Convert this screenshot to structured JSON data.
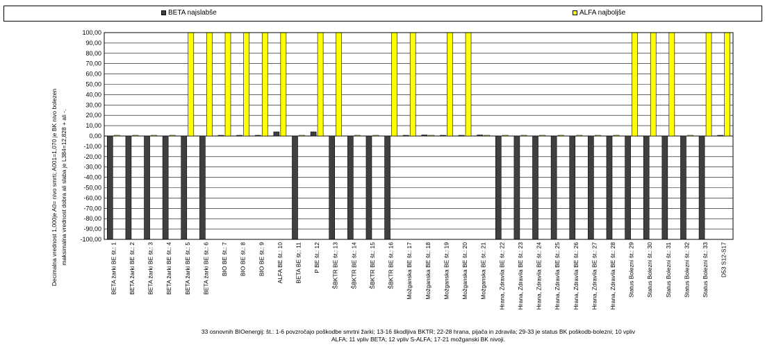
{
  "chart_data": {
    "type": "bar",
    "ylabel_lines": [
      "Decimalna vrednost 1,000je A0= nivo smrti; A001=1,070 je BK nivo bolezen",
      "maksimalna vrednost dobra ali slaba je L384=12,828 + ali -."
    ],
    "xlabel_lines": [
      "33 osnovnih BIOenergij: št.: 1-6 povzročajo poškodbe smrtni žarki; 13-16 škodljiva BKTR; 22-28 hrana, pijača in zdravila; 29-33 je status BK poškodb-bolezni; 10 vpliv",
      "ALFA; 11 vpliv BETA; 12 vpliv S-ALFA; 17-21 možganski BK nivoji."
    ],
    "ylim": [
      -100,
      100
    ],
    "ytick_step": 10,
    "ytick_labels": [
      "100,00",
      "90,00",
      "80,00",
      "70,00",
      "60,00",
      "50,00",
      "40,00",
      "30,00",
      "20,00",
      "10,00",
      "0,00",
      "-10,00",
      "-20,00",
      "-30,00",
      "-40,00",
      "-50,00",
      "-60,00",
      "-70,00",
      "-80,00",
      "-90,00",
      "-100,00"
    ],
    "grid": true,
    "legend_position": "top",
    "categories": [
      "BETA žarki BE št.: 1",
      "BETA žarki BE št.: 2",
      "BETA žarki BE št.: 3",
      "BETA žarki BE št.: 4",
      "BETA žarki BE št.: 5",
      "BETA žarki BE št.: 6",
      "BIO BE št.: 7",
      "BIO BE št.: 8",
      "BIO BE št.: 9",
      "ALFA BE št.: 10",
      "BETA BE št.: 11",
      "P BE št.: 12",
      "ŠBKTR BE št.: 13",
      "ŠBKTR BE št.: 14",
      "ŠBKTR BE št.: 15",
      "ŠBKTR BE št.: 16",
      "Možganska BE št.: 17",
      "Možganska BE št.: 18",
      "Možganska BE št.: 19",
      "Možganska BE št.: 20",
      "Možganska BE št.: 21",
      "Hrana, Zdravila BE št.: 22",
      "Hrana, Zdravila BE št.: 23",
      "Hrana, Zdravila BE št.: 24",
      "Hrana, Zdravila BE št.: 25",
      "Hrana, Zdravila BE št.: 26",
      "Hrana, Zdravila BE št.: 27",
      "Hrana, Zdravila BE št.: 28",
      "Status Bolezni št.: 29",
      "Status Bolezni št.: 30",
      "Status Bolezni št.: 31",
      "Status Bolezni št.: 32",
      "Status Bolezni št.: 33",
      "D53 S12-S17"
    ],
    "series": [
      {
        "name": "BETA najslabše",
        "color": "#404040",
        "values": [
          -100,
          -100,
          -100,
          -100,
          -100,
          -100,
          0,
          0,
          0,
          4,
          -100,
          4,
          -100,
          -100,
          -100,
          -100,
          0,
          1,
          0,
          0,
          1,
          -100,
          -100,
          -100,
          -100,
          -100,
          -100,
          -100,
          -100,
          -100,
          -100,
          -100,
          -100,
          0
        ]
      },
      {
        "name": "ALFA najboljše",
        "color": "#ffff00",
        "values": [
          0,
          0,
          0,
          0,
          100,
          100,
          100,
          100,
          100,
          100,
          0,
          100,
          100,
          0,
          0,
          100,
          100,
          0,
          100,
          100,
          0,
          0,
          0,
          0,
          0,
          0,
          0,
          0,
          100,
          100,
          100,
          0,
          100,
          100
        ]
      }
    ]
  }
}
